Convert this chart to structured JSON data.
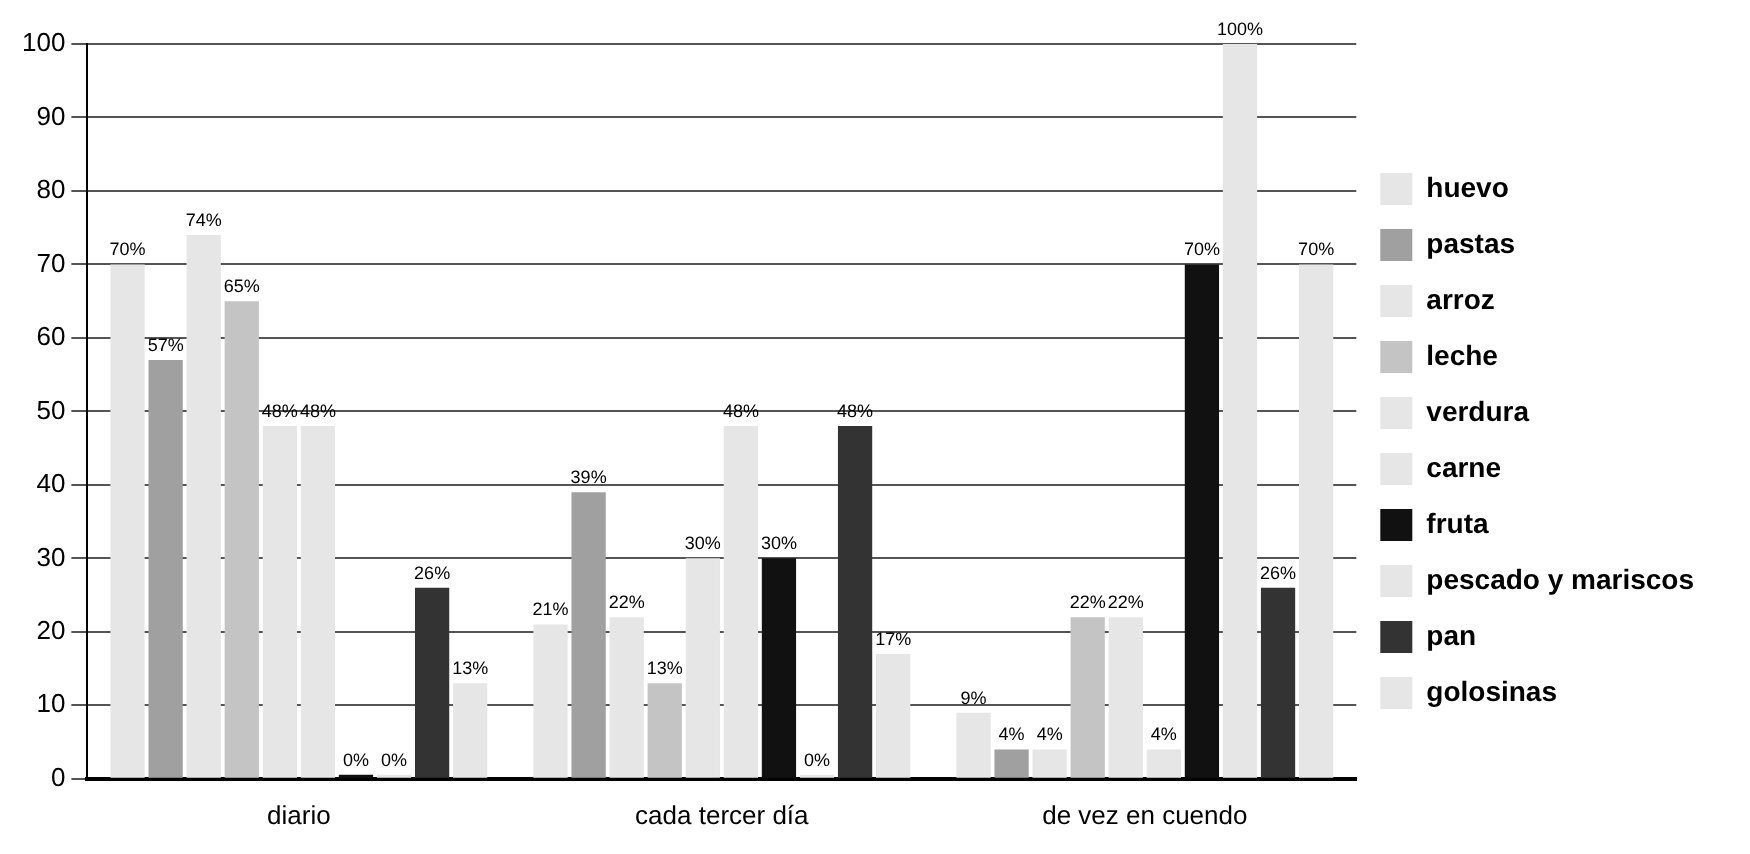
{
  "chart_data": {
    "type": "bar",
    "categories": [
      "diario",
      "cada tercer día",
      "de vez en cuendo"
    ],
    "ylim": [
      0,
      100
    ],
    "yticks": [
      0,
      10,
      20,
      30,
      40,
      50,
      60,
      70,
      80,
      90,
      100
    ],
    "grid": "y",
    "legend": "right",
    "series": [
      {
        "name": "huevo",
        "color": "#e6e6e6",
        "values": [
          70,
          21,
          9
        ],
        "value_labels": [
          "70%",
          "21%",
          "9%"
        ]
      },
      {
        "name": "pastas",
        "color": "#a0a0a0",
        "values": [
          57,
          39,
          4
        ],
        "value_labels": [
          "57%",
          "39%",
          "4%"
        ]
      },
      {
        "name": "arroz",
        "color": "#e6e6e6",
        "values": [
          74,
          22,
          4
        ],
        "value_labels": [
          "74%",
          "22%",
          "4%"
        ]
      },
      {
        "name": "leche",
        "color": "#c4c4c4",
        "values": [
          65,
          13,
          22
        ],
        "value_labels": [
          "65%",
          "13%",
          "22%"
        ]
      },
      {
        "name": "verdura",
        "color": "#e6e6e6",
        "values": [
          48,
          30,
          22
        ],
        "value_labels": [
          "48%",
          "30%",
          "22%"
        ]
      },
      {
        "name": "carne",
        "color": "#e6e6e6",
        "values": [
          48,
          48,
          4
        ],
        "value_labels": [
          "48%",
          "48%",
          "4%"
        ]
      },
      {
        "name": "fruta",
        "color": "#111111",
        "values": [
          0,
          30,
          70
        ],
        "value_labels": [
          "0%",
          "30%",
          "70%"
        ]
      },
      {
        "name": "pescado y mariscos",
        "color": "#e6e6e6",
        "values": [
          0,
          0,
          100
        ],
        "value_labels": [
          "0%",
          "0%",
          "100%"
        ]
      },
      {
        "name": "pan",
        "color": "#333333",
        "values": [
          26,
          48,
          26
        ],
        "value_labels": [
          "26%",
          "48%",
          "26%"
        ]
      },
      {
        "name": "golosinas",
        "color": "#e6e6e6",
        "values": [
          13,
          17,
          70
        ],
        "value_labels": [
          "13%",
          "17%",
          "70%"
        ]
      }
    ]
  }
}
